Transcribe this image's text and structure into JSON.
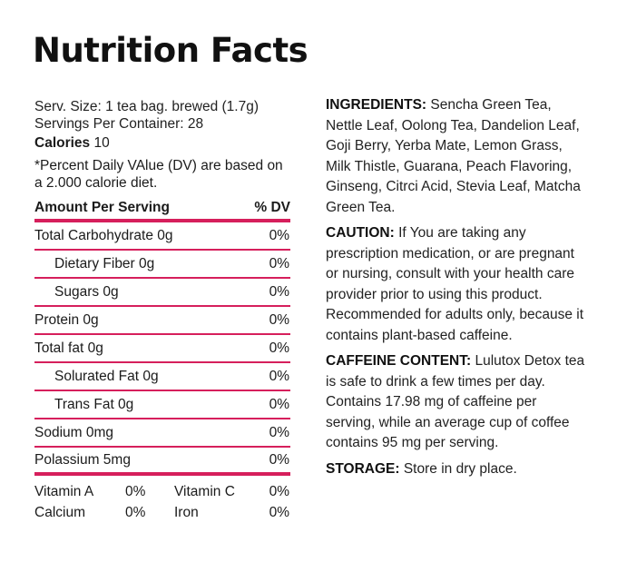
{
  "title": "Nutrition Facts",
  "serving": {
    "size": "Serv. Size: 1 tea bag. brewed (1.7g)",
    "per_container": "Servings Per Container: 28",
    "calories_label": "Calories",
    "calories_value": "10",
    "dv_note": "*Percent Daily VAlue (DV) are based on a 2.000 calorie diet."
  },
  "table": {
    "header_label": "Amount Per Serving",
    "header_dv": "% DV",
    "rows": [
      {
        "label": "Total Carbohydrate 0g",
        "pct": "0%"
      },
      {
        "label": "Dietary Fiber 0g",
        "pct": "0%"
      },
      {
        "label": "Sugars 0g",
        "pct": "0%"
      },
      {
        "label": "Protein 0g",
        "pct": "0%"
      },
      {
        "label": "Total fat 0g",
        "pct": "0%"
      },
      {
        "label": "Solurated Fat 0g",
        "pct": "0%"
      },
      {
        "label": "Trans Fat 0g",
        "pct": "0%"
      },
      {
        "label": "Sodium 0mg",
        "pct": "0%"
      },
      {
        "label": "Polassium 5mg",
        "pct": "0%"
      }
    ]
  },
  "vitamins": [
    {
      "a_label": "Vitamin A",
      "a_pct": "0%",
      "b_label": "Vitamin C",
      "b_pct": "0%"
    },
    {
      "a_label": "Calcium",
      "a_pct": "0%",
      "b_label": "Iron",
      "b_pct": "0%"
    }
  ],
  "ingredients": {
    "label": "INGREDIENTS:",
    "text": "Sencha Green Tea, Nettle Leaf, Oolong Tea, Dandelion Leaf, Goji Berry, Yerba Mate, Lemon Grass, Milk Thistle, Guarana, Peach Flavoring, Ginseng, Citrci Acid, Stevia Leaf, Matcha Green Tea."
  },
  "caution": {
    "label": "CAUTION:",
    "text": "If You are taking any prescription medication, or are pregnant or nursing, consult with your health care provider prior to using this product.",
    "text2": "Recommended for adults only, because it contains plant-based caffeine."
  },
  "caffeine": {
    "label": "CAFFEINE CONTENT:",
    "text": "Lulutox Detox tea is safe to drink a few times per day. Contains 17.98 mg of caffeine per serving, while an average cup of coffee contains 95 mg per serving."
  },
  "storage": {
    "label": "STORAGE:",
    "text": "Store in dry place."
  },
  "colors": {
    "accent": "#d61f5c",
    "text": "#1b1b1b"
  }
}
